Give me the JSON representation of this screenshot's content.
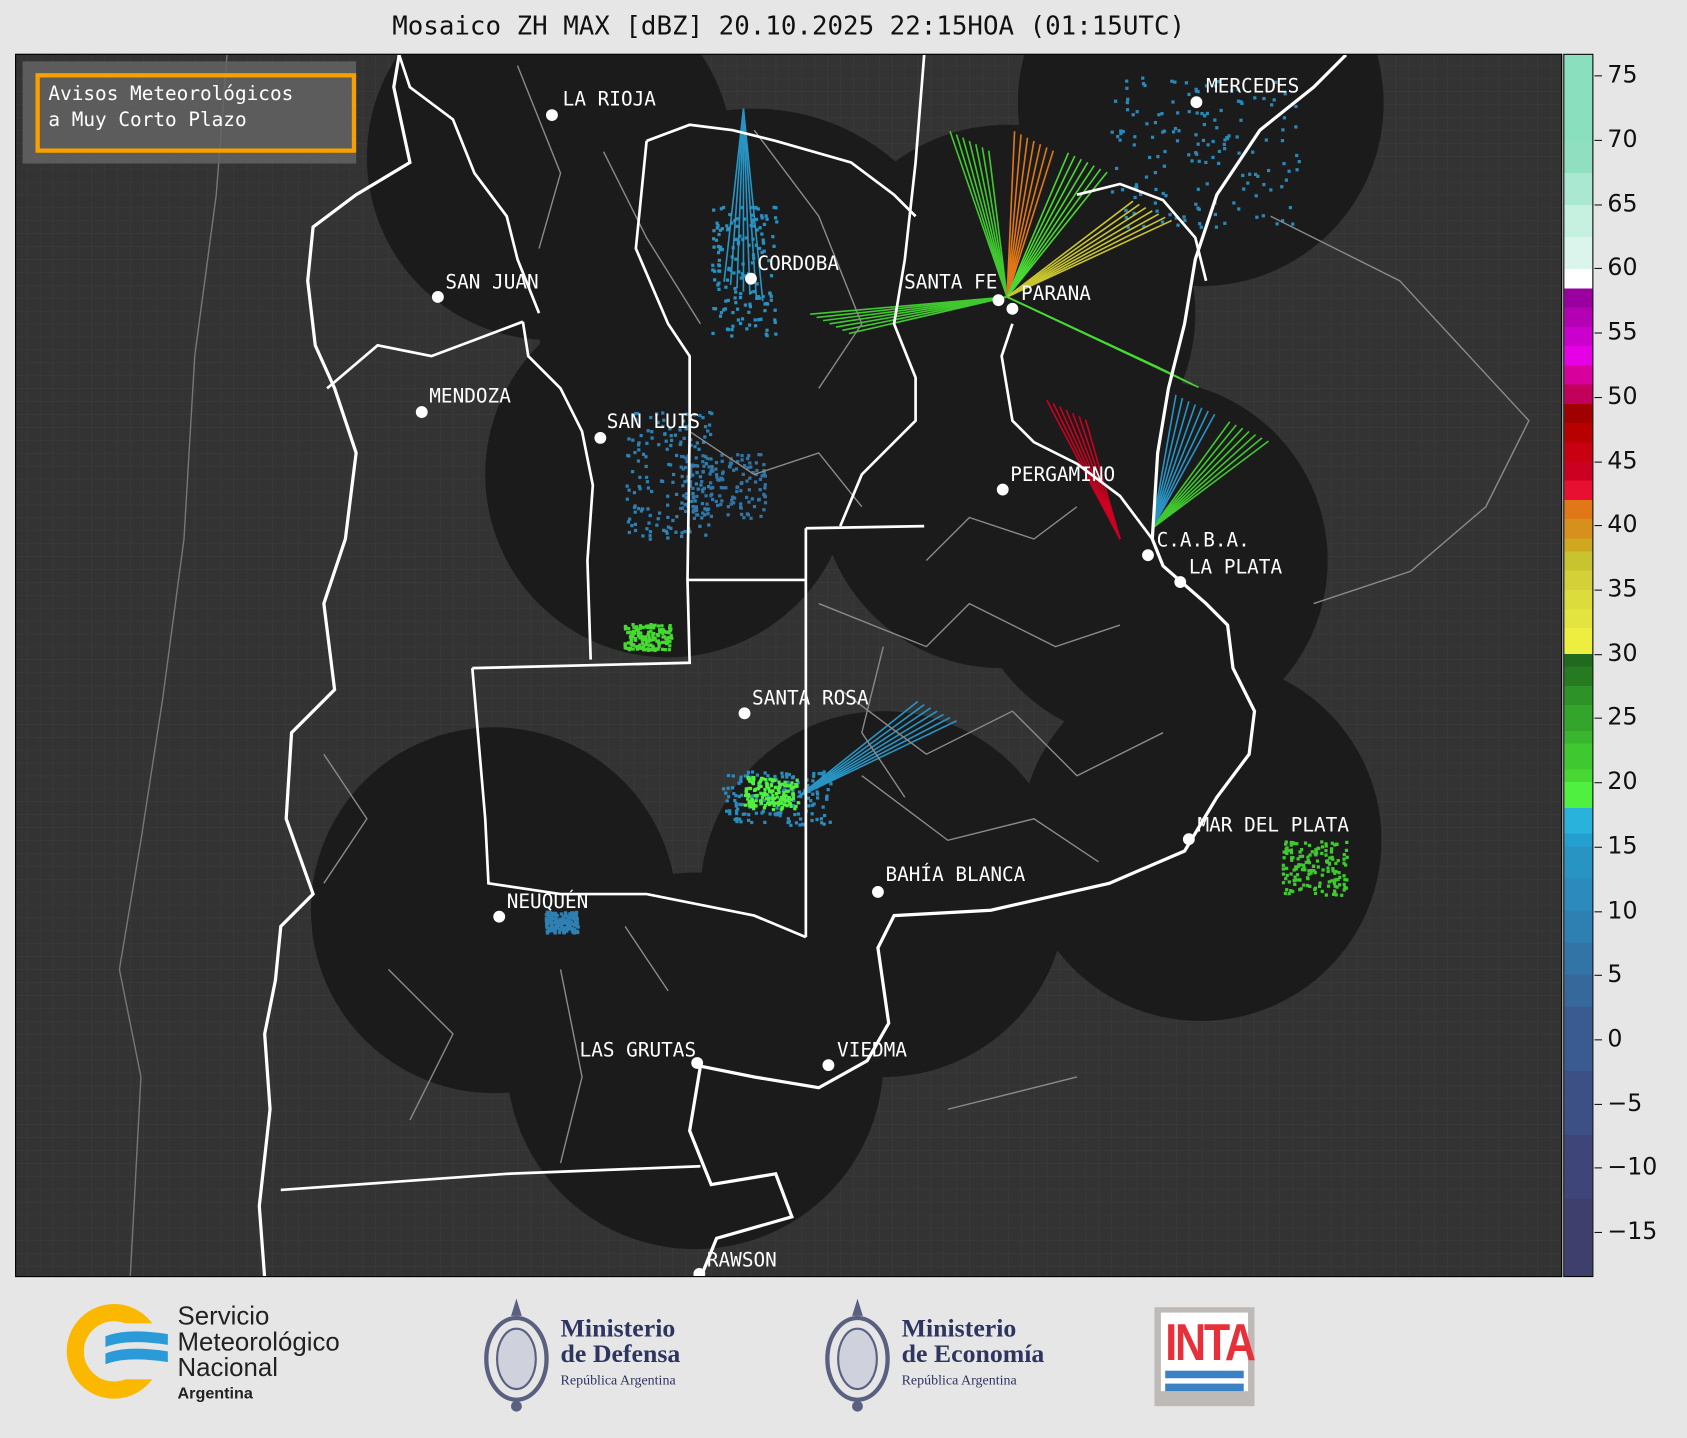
{
  "title": "Mosaico ZH MAX [dBZ] 20.10.2025 22:15HOA (01:15UTC)",
  "legend_box": {
    "line1": "Avisos Meteorológicos",
    "line2": "a Muy Corto Plazo",
    "border_color": "#f7a000"
  },
  "cities": [
    {
      "name": "LA RIOJA"
    },
    {
      "name": "MERCEDES"
    },
    {
      "name": "CORDOBA"
    },
    {
      "name": "SAN JUAN"
    },
    {
      "name": "SANTA FE"
    },
    {
      "name": "PARANA"
    },
    {
      "name": "MENDOZA"
    },
    {
      "name": "SAN LUIS"
    },
    {
      "name": "PERGAMINO"
    },
    {
      "name": "C.A.B.A."
    },
    {
      "name": "LA PLATA"
    },
    {
      "name": "SANTA ROSA"
    },
    {
      "name": "MAR DEL PLATA"
    },
    {
      "name": "BAHÍA BLANCA"
    },
    {
      "name": "NEUQUÉN"
    },
    {
      "name": "LAS GRUTAS"
    },
    {
      "name": "VIEDMA"
    },
    {
      "name": "RAWSON"
    }
  ],
  "colorbar": {
    "unit": "dBZ",
    "range": [
      -18.5,
      76.7
    ],
    "ticks": [
      "75",
      "70",
      "65",
      "60",
      "55",
      "50",
      "45",
      "40",
      "35",
      "30",
      "25",
      "20",
      "15",
      "10",
      "5",
      "0",
      "−5",
      "−10",
      "−15"
    ],
    "stops": [
      [
        -18.5,
        "#3f3f6e"
      ],
      [
        -12.5,
        "#3e4679"
      ],
      [
        -7.5,
        "#3c5086"
      ],
      [
        -2.5,
        "#3a5b92"
      ],
      [
        2.5,
        "#36689c"
      ],
      [
        5,
        "#3274a6"
      ],
      [
        7.5,
        "#2e80b2"
      ],
      [
        10,
        "#2c8abc"
      ],
      [
        12.5,
        "#2894c4"
      ],
      [
        15,
        "#24a0d0"
      ],
      [
        16,
        "#28b2dc"
      ],
      [
        18,
        "#50f040"
      ],
      [
        20,
        "#48d834"
      ],
      [
        21,
        "#40c830"
      ],
      [
        23,
        "#3ab530"
      ],
      [
        24,
        "#33a42c"
      ],
      [
        26,
        "#2d9228"
      ],
      [
        27.5,
        "#267a22"
      ],
      [
        29,
        "#206a1e"
      ],
      [
        30,
        "#eeee40"
      ],
      [
        32,
        "#e4e440"
      ],
      [
        33.5,
        "#dcdc3c"
      ],
      [
        35,
        "#d4d038"
      ],
      [
        36.5,
        "#c8c430"
      ],
      [
        38,
        "#d0a820"
      ],
      [
        39,
        "#d8901c"
      ],
      [
        40.5,
        "#e07818"
      ],
      [
        42,
        "#e81030"
      ],
      [
        43.5,
        "#cc0020"
      ],
      [
        45,
        "#c80010"
      ],
      [
        46.5,
        "#b80000"
      ],
      [
        48,
        "#a00000"
      ],
      [
        49.5,
        "#c2005c"
      ],
      [
        51,
        "#d8009c"
      ],
      [
        52.5,
        "#e600e6"
      ],
      [
        54,
        "#cc00cc"
      ],
      [
        55.5,
        "#b300b3"
      ],
      [
        57,
        "#9a00a0"
      ],
      [
        58.5,
        "#ffffff"
      ],
      [
        60,
        "#dcf5ec"
      ],
      [
        62.5,
        "#c6f0e0"
      ],
      [
        65,
        "#aae8d2"
      ],
      [
        67.5,
        "#8fdfc0"
      ],
      [
        70,
        "#8adfbf"
      ]
    ]
  },
  "footer": {
    "smn": {
      "line1": "Servicio",
      "line2": "Meteorológico",
      "line3": "Nacional",
      "line4": "Argentina"
    },
    "defensa": {
      "line1": "Ministerio",
      "line2": "de Defensa",
      "line3": "República Argentina"
    },
    "economia": {
      "line1": "Ministerio",
      "line2": "de Economía",
      "line3": "República Argentina"
    },
    "inta": {
      "text": "INTA"
    }
  }
}
